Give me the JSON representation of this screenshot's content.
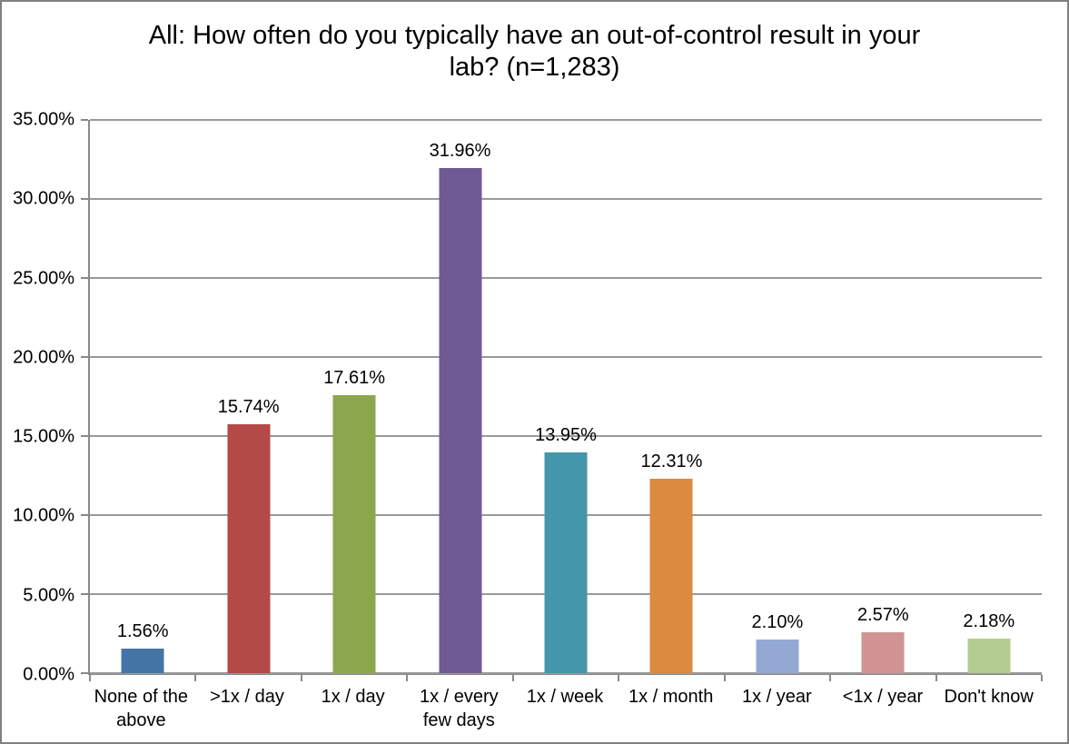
{
  "window": {
    "background": "#ffffff",
    "border_color": "#808080"
  },
  "chart_data": {
    "type": "bar",
    "title": "All: How often do you typically have an out-of-control result in your lab? (n=1,283)",
    "categories": [
      "None of the above",
      ">1x / day",
      "1x / day",
      "1x / every few days",
      "1x / week",
      "1x / month",
      "1x / year",
      "<1x / year",
      "Don't know"
    ],
    "values": [
      1.56,
      15.74,
      17.61,
      31.96,
      13.95,
      12.31,
      2.1,
      2.57,
      2.18
    ],
    "data_labels": [
      "1.56%",
      "15.74%",
      "17.61%",
      "31.96%",
      "13.95%",
      "12.31%",
      "2.10%",
      "2.57%",
      "2.18%"
    ],
    "bar_colors": [
      "#4575A7",
      "#B34A47",
      "#8CA64E",
      "#705A94",
      "#4397AB",
      "#DB8A3F",
      "#93A9D4",
      "#D09392",
      "#B3CC90"
    ],
    "xlabel": "",
    "ylabel": "",
    "ylim": [
      0,
      35
    ],
    "ytick_labels": [
      "0.00%",
      "5.00%",
      "10.00%",
      "15.00%",
      "20.00%",
      "25.00%",
      "30.00%",
      "35.00%"
    ],
    "grid": true,
    "gridline_color": "#999999",
    "axis_color": "#898989",
    "legend_position": "none"
  }
}
